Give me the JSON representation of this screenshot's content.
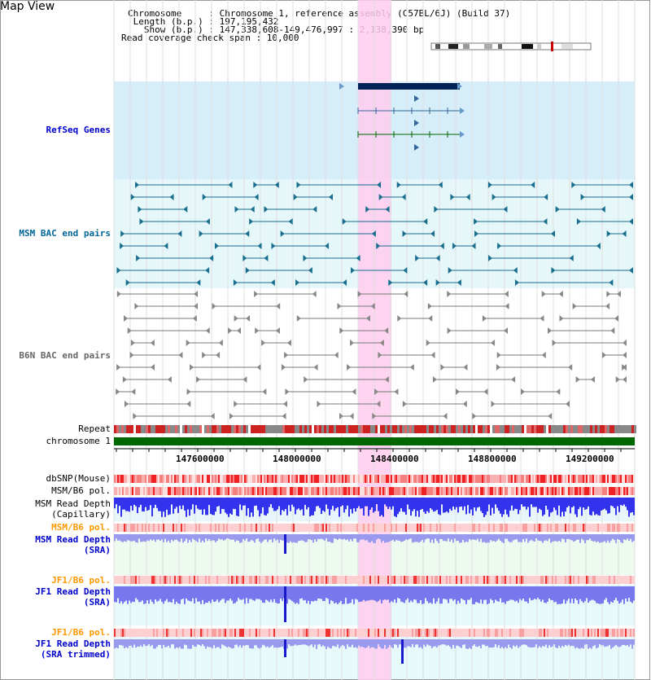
{
  "header": {
    "title": "Map View",
    "info_lines": [
      "Chromosome     : Chromosome 1, reference assembly (C57BL/6J) (Build 37)",
      " Length (b.p.) : 197,195,432",
      "   Show (b.p.) : 147,338,608-149,476,997 : 2,138,390 bp",
      "Read coverage check span : 10,000"
    ]
  },
  "tracks": {
    "refseq": "RefSeq Genes",
    "msm_bac": "MSM BAC end pairs",
    "b6n_bac": "B6N BAC end pairs",
    "repeat": "Repeat",
    "chromosome": "chromosome 1",
    "dbsnp": "dbSNP(Mouse)",
    "msm_b6_pol": "MSM/B6 pol.",
    "msm_depth_cap_1": "MSM Read Depth",
    "msm_depth_cap_2": "(Capillary)",
    "msm_b6_pol2": "MSM/B6 pol.",
    "msm_depth_sra_1": "MSM Read Depth",
    "msm_depth_sra_2": "(SRA)",
    "jf1_b6_pol": "JF1/B6 pol.",
    "jf1_depth_sra_1": "JF1 Read Depth",
    "jf1_depth_sra_2": "(SRA)",
    "jf1_b6_pol2": "JF1/B6 pol.",
    "jf1_depth_trim_1": "JF1 Read Depth",
    "jf1_depth_trim_2": "(SRA trimmed)"
  },
  "axis_ticks": [
    "147600000",
    "148000000",
    "148400000",
    "148800000",
    "149200000"
  ],
  "colors": {
    "refseq_label": "#0000cc",
    "msm_label": "#006699",
    "b6n_label": "#666666",
    "pol_label": "#ff9900",
    "depth_label": "#0000cc",
    "highlight": "#ffccee",
    "refseq_bg": "#d6eefa",
    "msm_bg": "#e6f7f9",
    "chromosome_bar": "#006600"
  }
}
